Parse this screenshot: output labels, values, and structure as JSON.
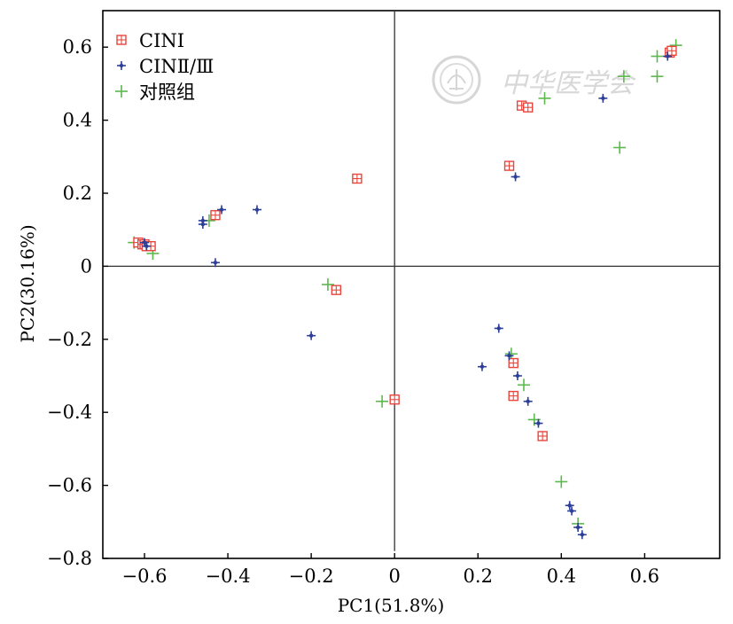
{
  "chart_data": {
    "type": "scatter",
    "xlabel": "PC1(51.8%)",
    "ylabel": "PC2(30.16%)",
    "xlim": [
      -0.7,
      0.78
    ],
    "ylim": [
      -0.8,
      0.7
    ],
    "xticks": [
      -0.6,
      -0.4,
      -0.2,
      0,
      0.2,
      0.4,
      0.6
    ],
    "yticks": [
      0.6,
      0.4,
      0.2,
      0,
      -0.2,
      -0.4,
      -0.6,
      -0.8
    ],
    "xtick_labels": [
      "−0.6",
      "−0.4",
      "−0.2",
      "0",
      "0.2",
      "0.4",
      "0.6"
    ],
    "ytick_labels": [
      "0.6",
      "0.4",
      "0.2",
      "0",
      "−0.2",
      "−0.4",
      "−0.6",
      "−0.8"
    ],
    "zero_lines": true,
    "grid": false,
    "legend_position": "top-left",
    "series": [
      {
        "name": "CINⅠ",
        "marker": "boxed-plus",
        "color": "#e8453c",
        "points": [
          [
            0.66,
            0.585
          ],
          [
            0.665,
            0.59
          ],
          [
            0.305,
            0.44
          ],
          [
            0.32,
            0.435
          ],
          [
            0.275,
            0.275
          ],
          [
            -0.09,
            0.24
          ],
          [
            -0.43,
            0.14
          ],
          [
            -0.615,
            0.065
          ],
          [
            -0.605,
            0.06
          ],
          [
            -0.6,
            0.06
          ],
          [
            -0.595,
            0.055
          ],
          [
            -0.585,
            0.055
          ],
          [
            -0.14,
            -0.065
          ],
          [
            0.285,
            -0.265
          ],
          [
            0.285,
            -0.355
          ],
          [
            0.0,
            -0.365
          ],
          [
            0.355,
            -0.465
          ]
        ]
      },
      {
        "name": "CINⅡ/Ⅲ",
        "marker": "plus-dot",
        "color": "#2b3f99",
        "points": [
          [
            0.655,
            0.575
          ],
          [
            0.5,
            0.46
          ],
          [
            0.29,
            0.245
          ],
          [
            -0.415,
            0.155
          ],
          [
            -0.33,
            0.155
          ],
          [
            -0.46,
            0.125
          ],
          [
            -0.46,
            0.115
          ],
          [
            -0.43,
            0.01
          ],
          [
            -0.6,
            0.065
          ],
          [
            -0.595,
            0.055
          ],
          [
            -0.2,
            -0.19
          ],
          [
            0.25,
            -0.17
          ],
          [
            0.21,
            -0.275
          ],
          [
            0.275,
            -0.245
          ],
          [
            0.295,
            -0.3
          ],
          [
            0.32,
            -0.37
          ],
          [
            0.345,
            -0.43
          ],
          [
            0.42,
            -0.655
          ],
          [
            0.425,
            -0.67
          ],
          [
            0.44,
            -0.715
          ],
          [
            0.45,
            -0.735
          ]
        ]
      },
      {
        "name": "对照组",
        "marker": "plus",
        "color": "#5db84e",
        "points": [
          [
            0.675,
            0.605
          ],
          [
            0.63,
            0.575
          ],
          [
            0.55,
            0.52
          ],
          [
            0.63,
            0.52
          ],
          [
            0.36,
            0.46
          ],
          [
            0.54,
            0.325
          ],
          [
            -0.445,
            0.125
          ],
          [
            -0.625,
            0.065
          ],
          [
            -0.58,
            0.035
          ],
          [
            -0.16,
            -0.05
          ],
          [
            0.28,
            -0.24
          ],
          [
            0.31,
            -0.325
          ],
          [
            0.335,
            -0.42
          ],
          [
            -0.03,
            -0.37
          ],
          [
            0.4,
            -0.59
          ],
          [
            0.44,
            -0.705
          ]
        ]
      }
    ]
  },
  "watermark": {
    "text": "中华医学会"
  }
}
